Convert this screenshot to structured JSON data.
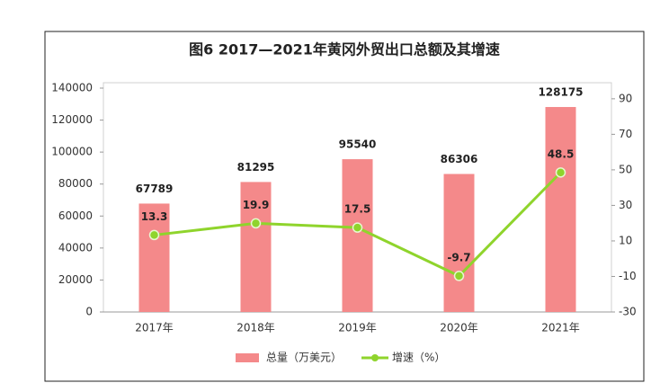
{
  "chart_data": {
    "type": "bar-line",
    "title": "图6  2017—2021年黄冈外贸出口总额及其增速",
    "categories": [
      "2017年",
      "2018年",
      "2019年",
      "2020年",
      "2021年"
    ],
    "series": [
      {
        "name": "总量（万美元）",
        "color": "#f4898a",
        "type": "bar",
        "values": [
          67789,
          81295,
          95540,
          86306,
          128175
        ]
      },
      {
        "name": "增速（%）",
        "color": "#8fd42c",
        "type": "line",
        "axis": "y2",
        "values": [
          13.3,
          19.9,
          17.5,
          -9.7,
          48.5
        ]
      }
    ],
    "ylim": [
      0,
      140000
    ],
    "yticks": [
      0,
      20000,
      40000,
      60000,
      80000,
      100000,
      120000,
      140000
    ],
    "y2lim": [
      -30,
      96
    ],
    "y2ticks": [
      -30,
      -10,
      10,
      30,
      50,
      70,
      90
    ],
    "legend": "bottom"
  }
}
